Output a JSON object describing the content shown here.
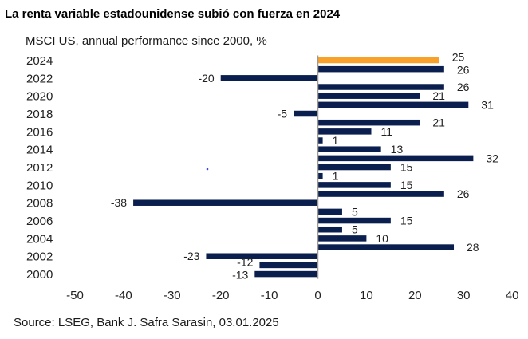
{
  "header": {
    "title": "La renta variable estadounidense subió con fuerza en 2024"
  },
  "footer": {
    "source": "Source: LSEG, Bank J. Safra Sarasin, 03.01.2025"
  },
  "colors": {
    "bar_default": "#0b1f4f",
    "bar_highlight": "#f7a12a",
    "axis_line": "#a09a94"
  },
  "chart_data": {
    "type": "bar",
    "orientation": "horizontal",
    "title": "La renta variable estadounidense subió con fuerza en 2024",
    "subtitle": "MSCI US, annual performance since 2000, %",
    "xlabel": "",
    "ylabel": "",
    "xlim": [
      -50,
      40
    ],
    "x_ticks": [
      -50,
      -40,
      -30,
      -20,
      -10,
      0,
      10,
      20,
      30,
      40
    ],
    "y_tick_labels": [
      "2024",
      "2022",
      "2020",
      "2018",
      "2016",
      "2014",
      "2012",
      "2010",
      "2008",
      "2006",
      "2004",
      "2002",
      "2000"
    ],
    "grid": false,
    "legend": "none",
    "highlight_category": "2024",
    "categories": [
      "2024",
      "2023",
      "2022",
      "2021",
      "2020",
      "2019",
      "2018",
      "2017",
      "2016",
      "2015",
      "2014",
      "2013",
      "2012",
      "2011",
      "2010",
      "2009",
      "2008",
      "2007",
      "2006",
      "2005",
      "2004",
      "2003",
      "2002",
      "2001",
      "2000"
    ],
    "values": [
      25,
      26,
      -20,
      26,
      21,
      31,
      -5,
      21,
      11,
      1,
      13,
      32,
      15,
      1,
      15,
      26,
      -38,
      5,
      15,
      5,
      10,
      28,
      -23,
      -12,
      -13
    ],
    "data_labels": [
      "25",
      "26",
      "-20",
      "26",
      "21",
      "31",
      "-5",
      "21",
      "11",
      "1",
      "13",
      "32",
      "15",
      "1",
      "15",
      "26",
      "-38",
      "5",
      "15",
      "5",
      "10",
      "28",
      "-23",
      "-12",
      "-13"
    ]
  }
}
